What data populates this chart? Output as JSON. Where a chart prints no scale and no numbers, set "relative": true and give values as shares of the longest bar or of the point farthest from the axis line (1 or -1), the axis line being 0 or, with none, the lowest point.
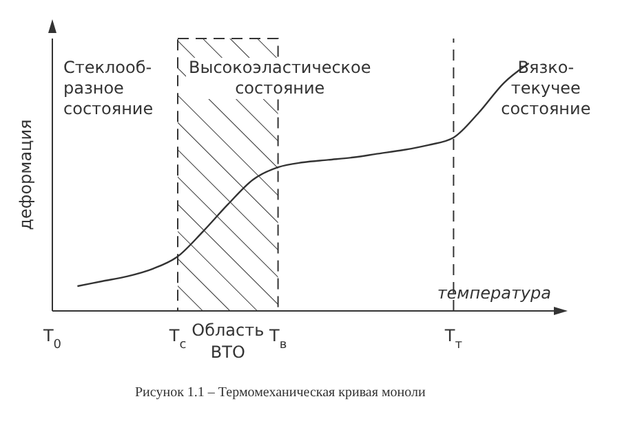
{
  "chart_data": {
    "type": "line",
    "relative": true,
    "xlabel": "температура",
    "ylabel": "деформация",
    "categories": [
      "T$_{0}$",
      null,
      null,
      null,
      null,
      "T$_{с}$",
      null,
      null,
      null,
      "T$_{в}$",
      null,
      null,
      null,
      null,
      null,
      null,
      "T$_{т}$",
      null,
      null,
      null,
      null
    ],
    "series": [
      {
        "color": "#333333",
        "values": [
          null,
          0.1,
          0.12,
          0.14,
          0.17,
          0.22,
          0.32,
          0.43,
          0.53,
          0.58,
          0.6,
          0.61,
          0.62,
          0.635,
          0.65,
          0.67,
          0.7,
          0.8,
          0.92,
          1.0,
          null
        ]
      }
    ],
    "bands": [
      {
        "axis": "x",
        "from": "T$_{с}$",
        "to": "T$_{в}$",
        "label": "Область ВТО"
      }
    ],
    "ref_lines": [
      {
        "axis": "x",
        "value": "T$_{т}$",
        "line_style": "dashed"
      }
    ],
    "annotations": [
      "Стеклооб-\nразное\nсостояние",
      "Высокоэластическое\nсостояние",
      "Вязко-\nтекучее\nсостояние",
      "Рисунок 1.1 – Термомеханическая кривая моноли"
    ],
    "marker": "none",
    "line_style": "solid",
    "grid": false,
    "legend": false
  }
}
